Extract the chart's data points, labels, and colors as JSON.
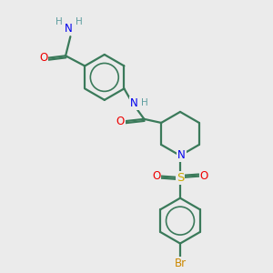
{
  "bg_color": "#ebebeb",
  "atom_colors": {
    "C": "#3a7a5a",
    "N": "#0000ee",
    "O": "#ee0000",
    "S": "#ccaa00",
    "Br": "#cc8800",
    "H": "#5f9ea0"
  },
  "bond_color": "#3a7a5a",
  "bond_width": 1.6,
  "figsize": [
    3.0,
    3.0
  ],
  "dpi": 100,
  "scale": 1.25
}
